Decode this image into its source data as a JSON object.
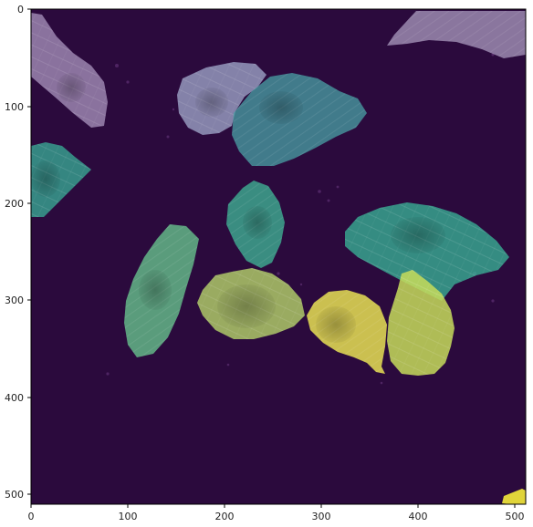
{
  "figure": {
    "colormap": "viridis",
    "background_color": "#2b0a3d",
    "x_ticks": [
      "0",
      "100",
      "200",
      "300",
      "400",
      "500"
    ],
    "y_ticks": [
      "0",
      "100",
      "200",
      "300",
      "400",
      "500"
    ],
    "cells": [
      {
        "id": "cell-top-left",
        "color": "#d9c8ef"
      },
      {
        "id": "cell-top-right",
        "color": "#d8d0ef"
      },
      {
        "id": "cell-upper-center-left",
        "color": "#bfd2f2"
      },
      {
        "id": "cell-upper-center",
        "color": "#4aa2a5"
      },
      {
        "id": "cell-left-edge",
        "color": "#38a592"
      },
      {
        "id": "cell-center-small",
        "color": "#3fae92"
      },
      {
        "id": "cell-right-large",
        "color": "#39b89a"
      },
      {
        "id": "cell-lower-left",
        "color": "#66c18c"
      },
      {
        "id": "cell-lower-center",
        "color": "#b6d36a"
      },
      {
        "id": "cell-lower-right-yellow",
        "color": "#e7e053"
      },
      {
        "id": "cell-lower-right-green",
        "color": "#c7dc5a"
      },
      {
        "id": "cell-bottom-corner",
        "color": "#f4ea3a"
      }
    ]
  }
}
